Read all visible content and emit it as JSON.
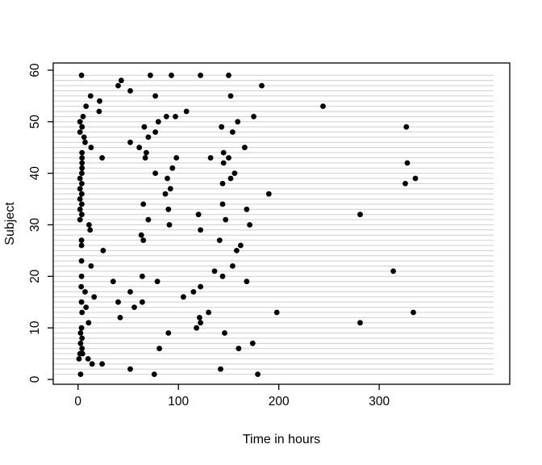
{
  "chart_data": {
    "type": "scatter",
    "title": "",
    "xlabel": "Time in hours",
    "ylabel": "Subject",
    "x_ticks": [
      0,
      100,
      200,
      300
    ],
    "y_ticks": [
      0,
      10,
      20,
      30,
      40,
      50,
      60
    ],
    "xlim": [
      -24.7,
      430
    ],
    "ylim": [
      -0.94,
      61.4
    ],
    "grid": {
      "orientation": "horizontal",
      "rows": "every subject 1-59",
      "x_start": -24.7,
      "x_end": 414
    },
    "legend": "none",
    "points": [
      {
        "subject": 1,
        "times": [
          2.5,
          76,
          179
        ]
      },
      {
        "subject": 2,
        "times": [
          52,
          142
        ]
      },
      {
        "subject": 3,
        "times": [
          14,
          24
        ]
      },
      {
        "subject": 4,
        "times": [
          1,
          10
        ]
      },
      {
        "subject": 5,
        "times": [
          2,
          4.5
        ]
      },
      {
        "subject": 6,
        "times": [
          4,
          81,
          160
        ]
      },
      {
        "subject": 7,
        "times": [
          2.5,
          174
        ]
      },
      {
        "subject": 8,
        "times": [
          4
        ]
      },
      {
        "subject": 9,
        "times": [
          2.5,
          90,
          146
        ]
      },
      {
        "subject": 10,
        "times": [
          3.5,
          118
        ]
      },
      {
        "subject": 11,
        "times": [
          10.5,
          122,
          281
        ]
      },
      {
        "subject": 12,
        "times": [
          42,
          121
        ]
      },
      {
        "subject": 13,
        "times": [
          4,
          130,
          198,
          334
        ]
      },
      {
        "subject": 14,
        "times": [
          8,
          56
        ]
      },
      {
        "subject": 15,
        "times": [
          3.5,
          40,
          64
        ]
      },
      {
        "subject": 16,
        "times": [
          16,
          105
        ]
      },
      {
        "subject": 17,
        "times": [
          7,
          52,
          115
        ]
      },
      {
        "subject": 18,
        "times": [
          3.2,
          122
        ]
      },
      {
        "subject": 19,
        "times": [
          35,
          79,
          168
        ]
      },
      {
        "subject": 20,
        "times": [
          3.5,
          64,
          144
        ]
      },
      {
        "subject": 21,
        "times": [
          136,
          314
        ]
      },
      {
        "subject": 22,
        "times": [
          13,
          154
        ]
      },
      {
        "subject": 23,
        "times": [
          3.5
        ]
      },
      {
        "subject": 24,
        "times": []
      },
      {
        "subject": 25,
        "times": [
          25,
          158
        ]
      },
      {
        "subject": 26,
        "times": [
          3.5,
          162
        ]
      },
      {
        "subject": 27,
        "times": [
          3.5,
          65,
          141
        ]
      },
      {
        "subject": 28,
        "times": [
          63
        ]
      },
      {
        "subject": 29,
        "times": [
          12,
          122
        ]
      },
      {
        "subject": 30,
        "times": [
          11,
          91,
          171
        ]
      },
      {
        "subject": 31,
        "times": [
          2,
          70,
          147
        ]
      },
      {
        "subject": 32,
        "times": [
          3.7,
          120,
          281
        ]
      },
      {
        "subject": 33,
        "times": [
          2,
          90,
          168
        ]
      },
      {
        "subject": 34,
        "times": [
          3.7,
          65,
          144
        ]
      },
      {
        "subject": 35,
        "times": [
          2
        ]
      },
      {
        "subject": 36,
        "times": [
          3.7,
          87,
          190
        ]
      },
      {
        "subject": 37,
        "times": [
          2,
          92
        ]
      },
      {
        "subject": 38,
        "times": [
          3.7,
          144,
          326
        ]
      },
      {
        "subject": 39,
        "times": [
          2,
          89,
          152,
          336
        ]
      },
      {
        "subject": 40,
        "times": [
          3.7,
          77,
          156
        ]
      },
      {
        "subject": 41,
        "times": [
          4,
          94
        ]
      },
      {
        "subject": 42,
        "times": [
          4,
          145,
          328
        ]
      },
      {
        "subject": 43,
        "times": [
          4,
          24,
          67,
          98,
          132,
          150
        ]
      },
      {
        "subject": 44,
        "times": [
          4,
          68,
          145
        ]
      },
      {
        "subject": 45,
        "times": [
          13,
          61,
          166
        ]
      },
      {
        "subject": 46,
        "times": [
          7,
          52
        ]
      },
      {
        "subject": 47,
        "times": [
          6,
          70
        ]
      },
      {
        "subject": 48,
        "times": [
          2,
          77,
          154
        ]
      },
      {
        "subject": 49,
        "times": [
          4,
          66,
          143,
          327
        ]
      },
      {
        "subject": 50,
        "times": [
          2,
          80,
          159
        ]
      },
      {
        "subject": 51,
        "times": [
          5,
          88,
          97,
          175
        ]
      },
      {
        "subject": 52,
        "times": [
          21,
          108
        ]
      },
      {
        "subject": 53,
        "times": [
          8,
          244
        ]
      },
      {
        "subject": 54,
        "times": [
          21.5
        ]
      },
      {
        "subject": 55,
        "times": [
          12.5,
          77,
          152
        ]
      },
      {
        "subject": 56,
        "times": [
          52
        ]
      },
      {
        "subject": 57,
        "times": [
          40,
          183
        ]
      },
      {
        "subject": 58,
        "times": [
          43
        ]
      },
      {
        "subject": 59,
        "times": [
          3.5,
          72,
          93,
          122,
          150
        ]
      }
    ]
  },
  "colors": {
    "background": "#ffffff",
    "dot": "#000000",
    "grid": "#d3d3d3",
    "axis": "#000000",
    "text": "#000000"
  }
}
